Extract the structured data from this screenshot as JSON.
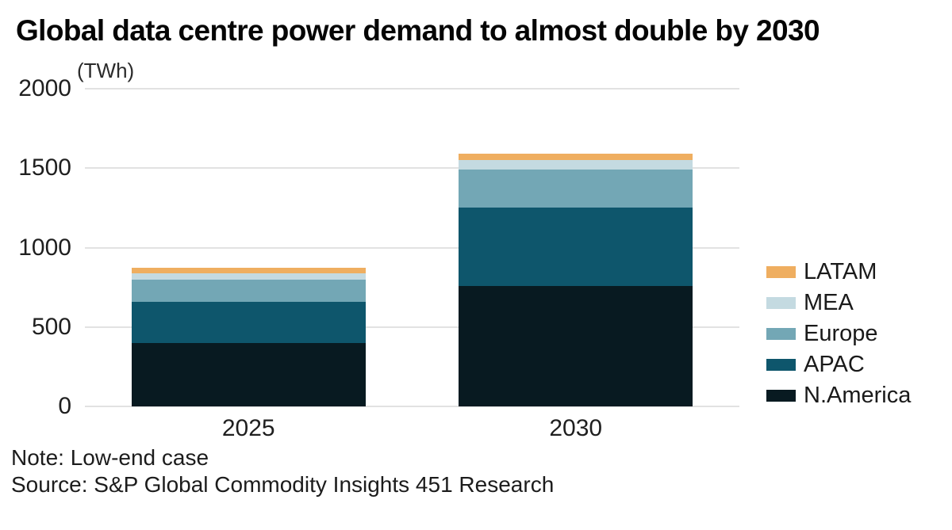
{
  "page": {
    "background": "#ffffff"
  },
  "chart_data": {
    "type": "bar",
    "stacked": true,
    "title": "Global data centre power demand to almost double by 2030",
    "unit_label": "(TWh)",
    "categories": [
      "2025",
      "2030"
    ],
    "series": [
      {
        "name": "N.America",
        "color": "#081A21",
        "values": [
          400,
          760
        ]
      },
      {
        "name": "APAC",
        "color": "#0E566C",
        "values": [
          260,
          490
        ]
      },
      {
        "name": "Europe",
        "color": "#73A7B5",
        "values": [
          140,
          240
        ]
      },
      {
        "name": "MEA",
        "color": "#C4DAE1",
        "values": [
          40,
          60
        ]
      },
      {
        "name": "LATAM",
        "color": "#EFAE60",
        "values": [
          35,
          40
        ]
      }
    ],
    "totals": {
      "2025": 875,
      "2030": 1590
    },
    "legend_top_to_bottom": [
      "LATAM",
      "MEA",
      "Europe",
      "APAC",
      "N.America"
    ],
    "ylim": [
      0,
      2000
    ],
    "yticks": [
      2000,
      1500,
      1000,
      500,
      0
    ],
    "grid": "horizontal",
    "legend_position": "right",
    "note": "Note: Low-end case",
    "source": "Source: S&P Global Commodity Insights 451 Research"
  }
}
